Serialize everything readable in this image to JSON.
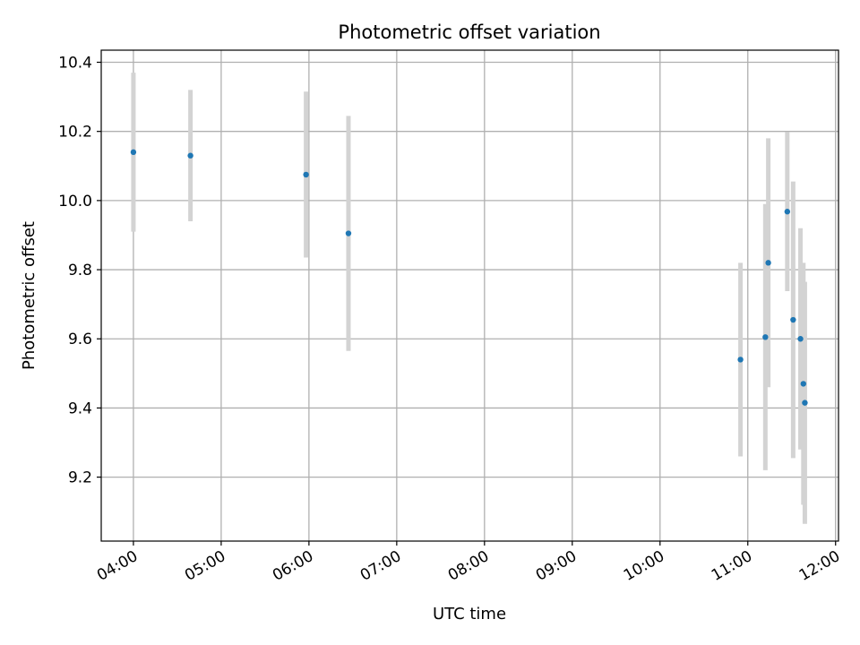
{
  "chart_data": {
    "type": "scatter",
    "title": "Photometric offset variation",
    "xlabel": "UTC time",
    "ylabel": "Photometric offset",
    "x_unit": "UTC time (HH:MM)",
    "xlim": [
      "03:38",
      "12:02"
    ],
    "ylim": [
      9.015,
      10.435
    ],
    "x_ticks": [
      "04:00",
      "05:00",
      "06:00",
      "07:00",
      "08:00",
      "09:00",
      "10:00",
      "11:00",
      "12:00"
    ],
    "y_ticks": [
      9.2,
      9.4,
      9.6,
      9.8,
      10.0,
      10.2,
      10.4
    ],
    "y_tick_labels": [
      "9.2",
      "9.4",
      "9.6",
      "9.8",
      "10.0",
      "10.2",
      "10.4"
    ],
    "grid": true,
    "colors": {
      "points": "#1f77b4",
      "errorbars": "#d3d3d3",
      "grid": "#b0b0b0"
    },
    "points": [
      {
        "x": "04:00",
        "y": 10.14,
        "err": 0.23
      },
      {
        "x": "04:39",
        "y": 10.13,
        "err": 0.19
      },
      {
        "x": "05:58",
        "y": 10.075,
        "err": 0.24
      },
      {
        "x": "06:27",
        "y": 9.905,
        "err": 0.34
      },
      {
        "x": "10:55",
        "y": 9.54,
        "err": 0.28
      },
      {
        "x": "11:12",
        "y": 9.605,
        "err": 0.385
      },
      {
        "x": "11:14",
        "y": 9.82,
        "err": 0.36
      },
      {
        "x": "11:27",
        "y": 9.968,
        "err": 0.23
      },
      {
        "x": "11:31",
        "y": 9.655,
        "err": 0.4
      },
      {
        "x": "11:36",
        "y": 9.6,
        "err": 0.32
      },
      {
        "x": "11:38",
        "y": 9.47,
        "err": 0.35
      },
      {
        "x": "11:39",
        "y": 9.415,
        "err": 0.35
      }
    ]
  }
}
